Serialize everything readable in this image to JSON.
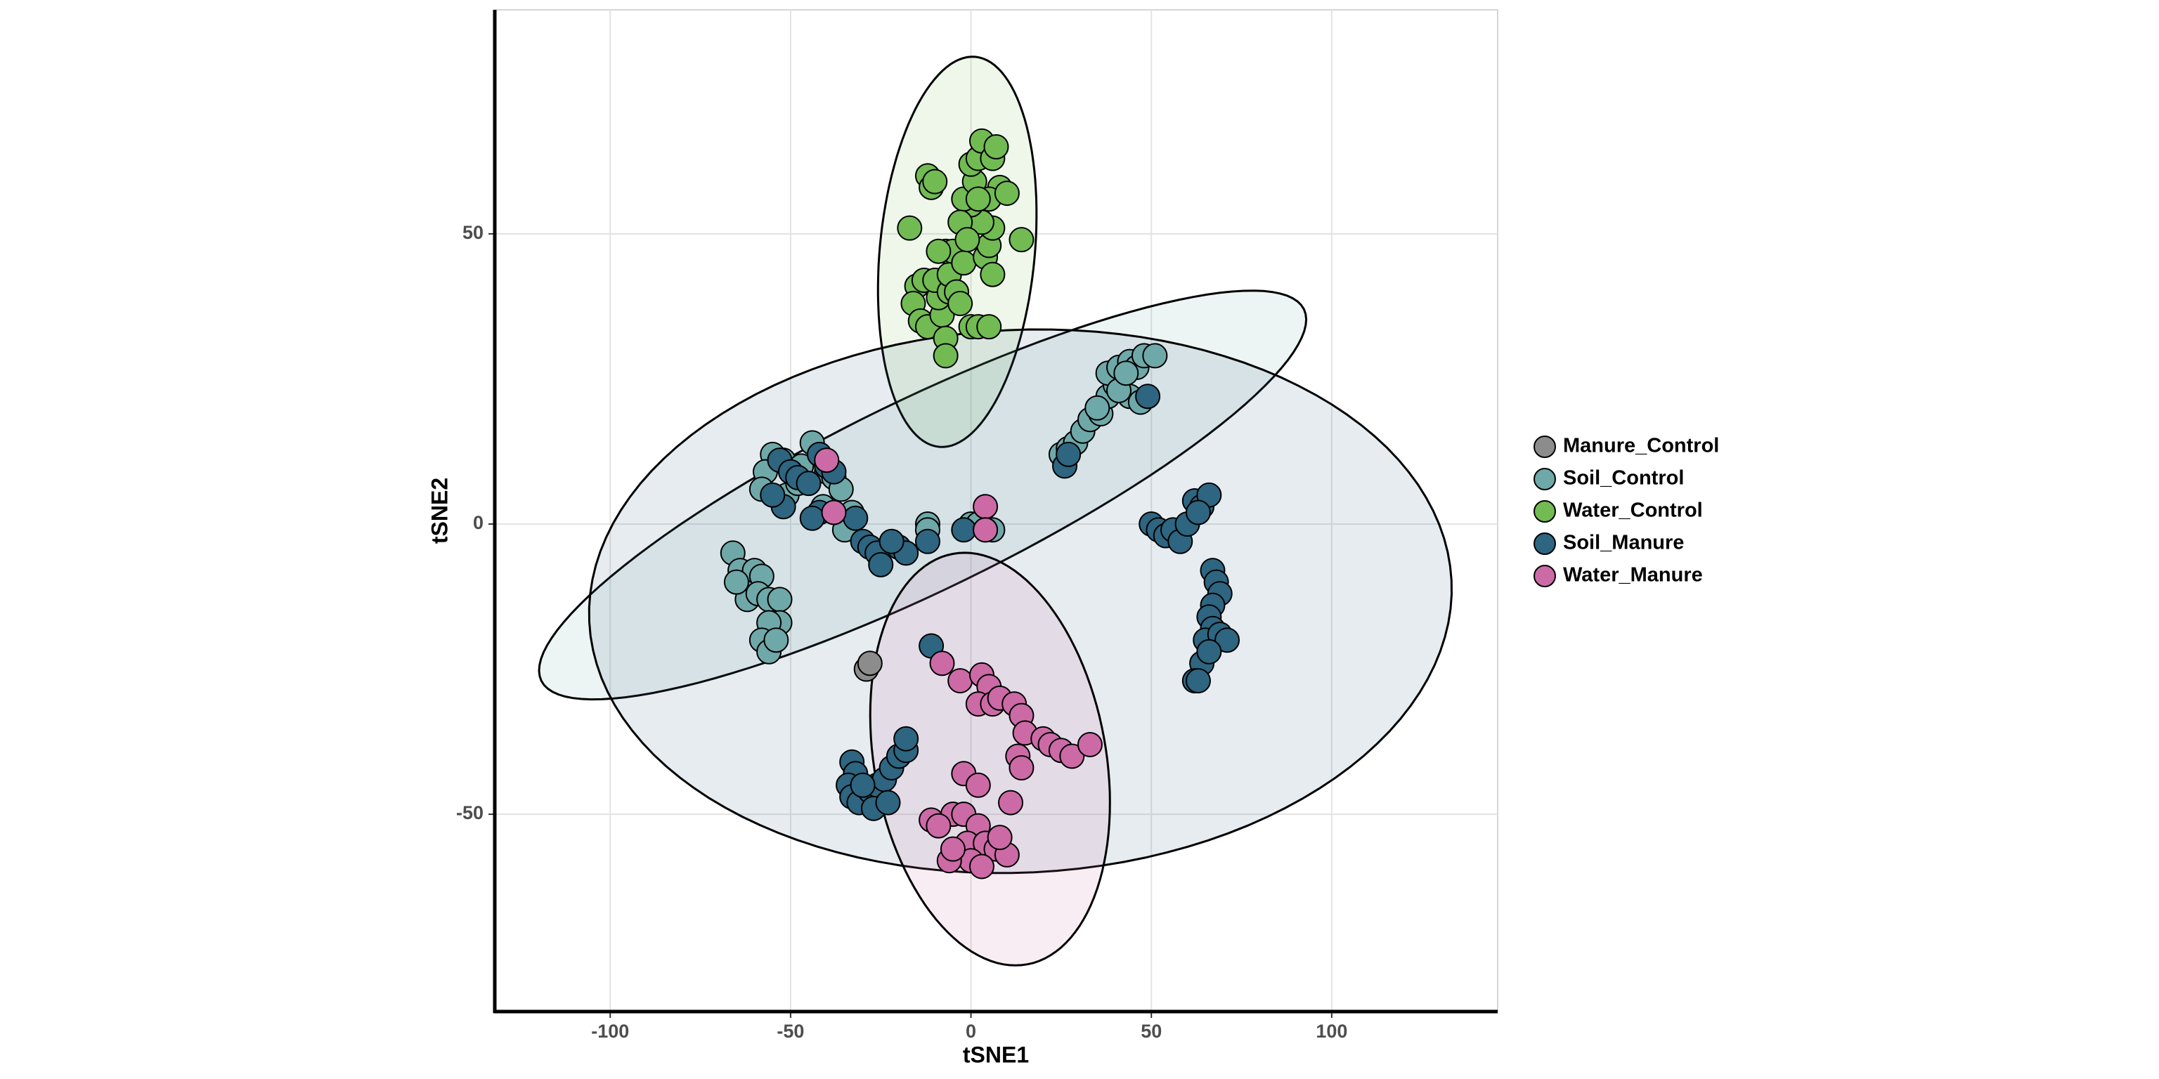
{
  "chart_data": {
    "type": "scatter",
    "xlabel": "tSNE1",
    "ylabel": "tSNE2",
    "xlim": [
      -132,
      146
    ],
    "ylim": [
      -84,
      88.6
    ],
    "xticks": [
      -100,
      -50,
      0,
      50,
      100
    ],
    "yticks": [
      -50,
      0,
      50
    ],
    "grid": true,
    "legend": "right",
    "series": [
      {
        "name": "Manure_Control",
        "color": "#8c8c8c",
        "x": [
          -29,
          -28
        ],
        "y": [
          -25,
          -24
        ]
      },
      {
        "name": "Soil_Control",
        "color": "#6fa8a8",
        "x": [
          25,
          27,
          29,
          31,
          33,
          36,
          38,
          40,
          38,
          41,
          44,
          46,
          48,
          51,
          44,
          47,
          41,
          43,
          35,
          -55,
          -52,
          -57,
          -58,
          -51,
          -44,
          -40,
          -38,
          -36,
          -41,
          -47,
          -48,
          -35,
          -33,
          -66,
          -64,
          -62,
          -60,
          -58,
          -62,
          -59,
          -56,
          -53,
          -53,
          -56,
          -58,
          -56,
          -54,
          -65,
          -12,
          -12,
          0,
          2,
          6
        ],
        "y": [
          12,
          13,
          14,
          16,
          18,
          19,
          22,
          24,
          26,
          27,
          28,
          27,
          29,
          29,
          22,
          21,
          23,
          26,
          20,
          12,
          11,
          9,
          6,
          5,
          14,
          9,
          8,
          6,
          3,
          10,
          7,
          -1,
          2,
          -5,
          -8,
          -10,
          -8,
          -9,
          -13,
          -12,
          -13,
          -13,
          -17,
          -17,
          -20,
          -22,
          -20,
          -10,
          0,
          -1,
          0,
          0,
          -1
        ],
        "ellipse": {
          "center": [
            -13.4,
            5.0
          ],
          "axis1": [
            105.7,
            32.0
          ],
          "axis2": [
            -11.5,
            14.7
          ]
        }
      },
      {
        "name": "Water_Control",
        "color": "#72bb53",
        "x": [
          -12,
          -11,
          -10,
          -17,
          -15,
          -13,
          -16,
          -14,
          -12,
          -8,
          -7,
          -7,
          -9,
          -10,
          -6,
          -6,
          -7,
          -5,
          -2,
          0,
          2,
          5,
          4,
          5,
          6,
          3,
          0,
          -2,
          1,
          0,
          2,
          3,
          6,
          7,
          8,
          5,
          2,
          -3,
          -1,
          -4,
          14,
          10,
          6,
          -9,
          -3
        ],
        "y": [
          60,
          58,
          59,
          51,
          41,
          42,
          38,
          35,
          34,
          36,
          32,
          29,
          39,
          42,
          40,
          43,
          47,
          47,
          45,
          34,
          34,
          34,
          46,
          48,
          51,
          52,
          55,
          56,
          59,
          62,
          63,
          66,
          63,
          65,
          58,
          56,
          56,
          52,
          49,
          40,
          49,
          57,
          43,
          47,
          38
        ],
        "ellipse": {
          "center": [
            -3.8,
            46.9
          ],
          "axis1": [
            5.0,
            33.6
          ],
          "axis2": [
            21.4,
            -1.2
          ]
        }
      },
      {
        "name": "Soil_Manure",
        "color": "#2e6580",
        "x": [
          -53,
          -50,
          -48,
          -42,
          -40,
          -38,
          -45,
          -42,
          -44,
          -52,
          -55,
          -32,
          -30,
          -28,
          -26,
          -25,
          -20,
          -18,
          -22,
          -12,
          -2,
          4,
          26,
          27,
          49,
          50,
          52,
          54,
          56,
          58,
          60,
          62,
          64,
          66,
          63,
          67,
          68,
          69,
          67,
          66,
          67,
          65,
          69,
          71,
          64,
          62,
          63,
          66,
          -33,
          -32,
          -34,
          -33,
          -31,
          -28,
          -26,
          -24,
          -22,
          -20,
          -18,
          -18,
          -27,
          -23,
          -30,
          -11
        ],
        "y": [
          11,
          9,
          8,
          12,
          10,
          9,
          7,
          2,
          1,
          3,
          5,
          1,
          -3,
          -4,
          -5,
          -7,
          -4,
          -5,
          -3,
          -3,
          -1,
          -1,
          10,
          12,
          22,
          0,
          -1,
          -2,
          -1,
          -3,
          0,
          4,
          3,
          5,
          2,
          -8,
          -10,
          -12,
          -14,
          -16,
          -18,
          -20,
          -19,
          -20,
          -24,
          -27,
          -27,
          -22,
          -41,
          -43,
          -45,
          -47,
          -48,
          -46,
          -45,
          -44,
          -42,
          -40,
          -39,
          -37,
          -49,
          -48,
          -45,
          -21
        ],
        "ellipse": {
          "center": [
            13.7,
            -13.3
          ],
          "axis1": [
            119.5,
            3.6
          ],
          "axis2": [
            -3.8,
            46.7
          ]
        }
      },
      {
        "name": "Water_Manure",
        "color": "#cc6aa6",
        "x": [
          -40,
          -38,
          4,
          4,
          -8,
          -3,
          3,
          5,
          2,
          6,
          8,
          12,
          14,
          15,
          13,
          14,
          20,
          22,
          25,
          28,
          33,
          -2,
          2,
          11,
          -5,
          -2,
          -11,
          -9,
          2,
          -1,
          4,
          7,
          10,
          0,
          3,
          -6,
          -5,
          8
        ],
        "y": [
          11,
          2,
          3,
          -1,
          -24,
          -27,
          -26,
          -28,
          -31,
          -31,
          -30,
          -31,
          -33,
          -36,
          -40,
          -42,
          -37,
          -38,
          -39,
          -40,
          -38,
          -43,
          -45,
          -48,
          -50,
          -50,
          -51,
          -52,
          -52,
          -55,
          -55,
          -56,
          -57,
          -58,
          -59,
          -58,
          -56,
          -54
        ],
        "ellipse": {
          "center": [
            5.3,
            -40.5
          ],
          "axis1": [
            -5.3,
            35.5
          ],
          "axis2": [
            32.8,
            -1.9
          ]
        }
      }
    ]
  }
}
